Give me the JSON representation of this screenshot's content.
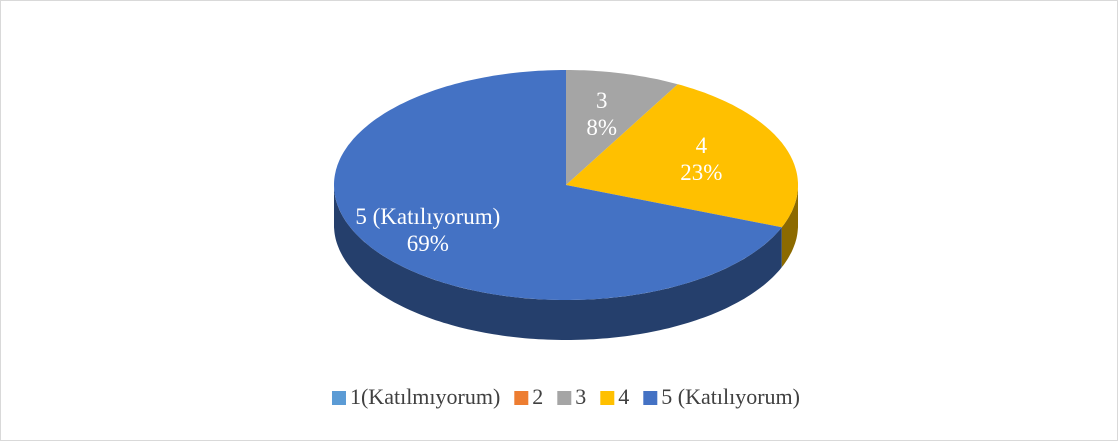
{
  "chart_data": {
    "type": "pie",
    "categories": [
      "1(Katılmıyorum)",
      "2",
      "3",
      "4",
      "5 (Katılıyorum)"
    ],
    "values": [
      0,
      0,
      8,
      23,
      69
    ],
    "value_labels": [
      null,
      null,
      "8%",
      "23%",
      "69%"
    ],
    "colors": [
      "#5b9bd5",
      "#ed7d31",
      "#a5a5a5",
      "#ffc000",
      "#4472c4"
    ],
    "legend": "bottom"
  }
}
